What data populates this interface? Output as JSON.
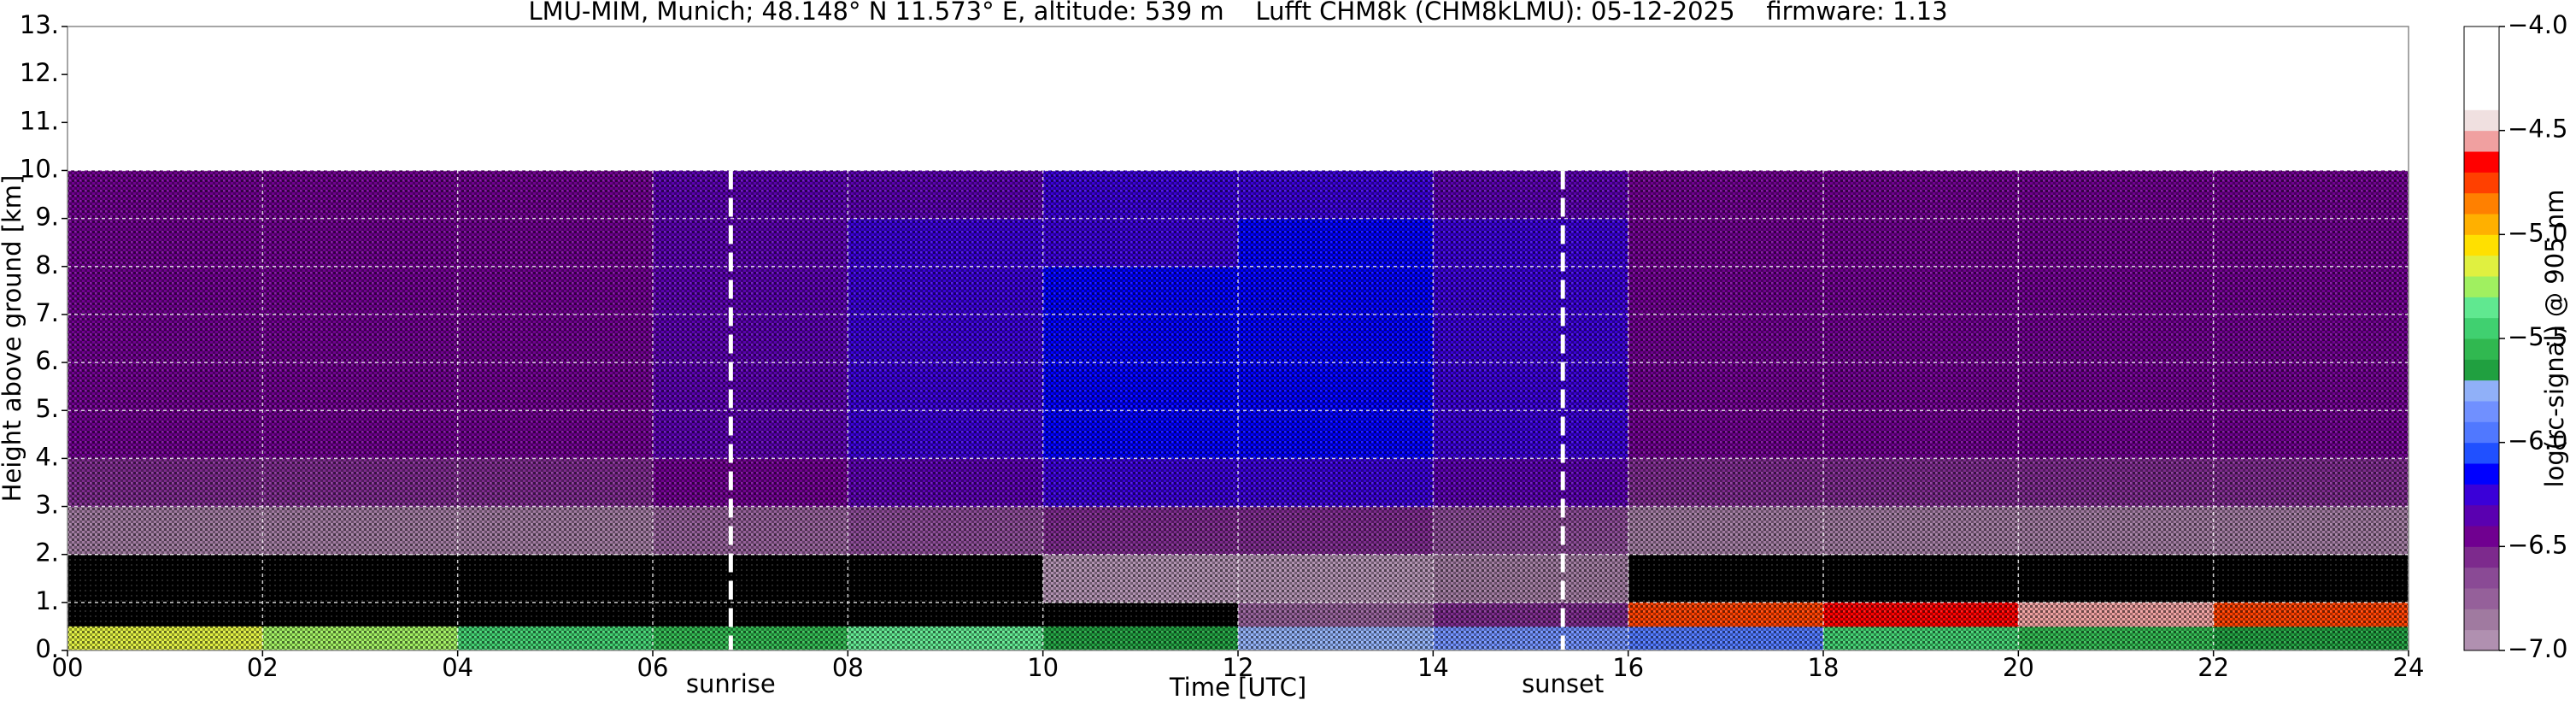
{
  "chart_data": {
    "type": "heatmap",
    "title": "LMU-MIM, Munich; 48.148° N 11.573° E, altitude: 539 m    Lufft CHM8k (CHM8kLMU): 05-12-2025    firmware: 1.13",
    "xlabel": "Time [UTC]",
    "ylabel": "Height above ground [km]",
    "xbins": [
      0,
      2,
      4,
      6,
      8,
      10,
      12,
      14,
      16,
      18,
      20,
      22,
      24
    ],
    "ybins": [
      0,
      0.5,
      1,
      2,
      3,
      4,
      5,
      6,
      7,
      8,
      9,
      10
    ],
    "values": [
      [
        -5.2,
        -5.3,
        -5.5,
        -5.6,
        -5.4,
        -5.7,
        -5.8,
        -5.9,
        -6.0,
        -5.5,
        -5.6,
        -5.7
      ],
      [
        null,
        null,
        null,
        null,
        null,
        null,
        -6.8,
        -6.6,
        -4.8,
        -4.7,
        -4.6,
        -4.8
      ],
      [
        null,
        null,
        null,
        null,
        null,
        -7.0,
        -7.0,
        -6.9,
        null,
        null,
        null,
        null
      ],
      [
        -6.9,
        -6.9,
        -6.9,
        -6.8,
        -6.7,
        -6.6,
        -6.6,
        -6.7,
        -6.9,
        -6.9,
        -6.9,
        -6.9
      ],
      [
        -6.6,
        -6.6,
        -6.6,
        -6.5,
        -6.4,
        -6.3,
        -6.3,
        -6.4,
        -6.6,
        -6.6,
        -6.6,
        -6.6
      ],
      [
        -6.5,
        -6.5,
        -6.5,
        -6.4,
        -6.3,
        -6.2,
        -6.2,
        -6.3,
        -6.5,
        -6.5,
        -6.5,
        -6.5
      ],
      [
        -6.5,
        -6.5,
        -6.5,
        -6.4,
        -6.3,
        -6.2,
        -6.2,
        -6.3,
        -6.5,
        -6.5,
        -6.5,
        -6.5
      ],
      [
        -6.5,
        -6.5,
        -6.5,
        -6.4,
        -6.3,
        -6.2,
        -6.2,
        -6.3,
        -6.5,
        -6.5,
        -6.5,
        -6.5
      ],
      [
        -6.5,
        -6.5,
        -6.5,
        -6.4,
        -6.3,
        -6.2,
        -6.2,
        -6.3,
        -6.5,
        -6.5,
        -6.5,
        -6.5
      ],
      [
        -6.5,
        -6.5,
        -6.5,
        -6.4,
        -6.3,
        -6.3,
        -6.2,
        -6.3,
        -6.5,
        -6.5,
        -6.5,
        -6.5
      ],
      [
        -6.5,
        -6.5,
        -6.5,
        -6.4,
        -6.4,
        -6.3,
        -6.3,
        -6.4,
        -6.5,
        -6.5,
        -6.5,
        -6.5
      ]
    ],
    "xlim": [
      0,
      24
    ],
    "ylim": [
      0,
      13
    ],
    "xticks": [
      {
        "value": 0,
        "label": "00"
      },
      {
        "value": 2,
        "label": "02"
      },
      {
        "value": 4,
        "label": "04"
      },
      {
        "value": 6,
        "label": "06"
      },
      {
        "value": 8,
        "label": "08"
      },
      10,
      12,
      14,
      16,
      18,
      20,
      22,
      24
    ],
    "yticks": [
      {
        "value": 0,
        "label": "0."
      },
      {
        "value": 1,
        "label": "1."
      },
      {
        "value": 2,
        "label": "2."
      },
      {
        "value": 3,
        "label": "3."
      },
      {
        "value": 4,
        "label": "4."
      },
      {
        "value": 5,
        "label": "5."
      },
      {
        "value": 6,
        "label": "6."
      },
      {
        "value": 7,
        "label": "7."
      },
      {
        "value": 8,
        "label": "8."
      },
      {
        "value": 9,
        "label": "9."
      },
      {
        "value": 10,
        "label": "10."
      },
      {
        "value": 11,
        "label": "11."
      },
      {
        "value": 12,
        "label": "12."
      },
      {
        "value": 13,
        "label": "13."
      }
    ],
    "grid": true,
    "colorbar": {
      "label": "log(rc-signal) @ 905 nm",
      "lim": [
        -7,
        -4
      ],
      "ticks": [
        {
          "value": -7,
          "label": "−7.0"
        },
        {
          "value": -6.5,
          "label": "−6.5"
        },
        {
          "value": -6,
          "label": "−6.0"
        },
        {
          "value": -5.5,
          "label": "−5.5"
        },
        {
          "value": -5,
          "label": "−5.0"
        },
        {
          "value": -4.5,
          "label": "−4.5"
        },
        {
          "value": -4,
          "label": "−4.0"
        }
      ],
      "colors": [
        "#b090b0",
        "#a07aa0",
        "#95609a",
        "#8a4a95",
        "#7d2a8d",
        "#700090",
        "#5a00b0",
        "#3a00d8",
        "#0000ff",
        "#2050ff",
        "#5078ff",
        "#7090ff",
        "#90b0f8",
        "#20a040",
        "#30b850",
        "#40d070",
        "#60e890",
        "#a0f060",
        "#e0f040",
        "#ffe000",
        "#ffb000",
        "#ff8000",
        "#ff4000",
        "#ff0000",
        "#f0a0a0",
        "#f0e0e0",
        "#ffffff",
        "#ffffff",
        "#ffffff",
        "#ffffff"
      ]
    },
    "annotations": [
      {
        "text": "sunrise",
        "x": 6.8
      },
      {
        "text": "sunset",
        "x": 15.33
      }
    ]
  }
}
